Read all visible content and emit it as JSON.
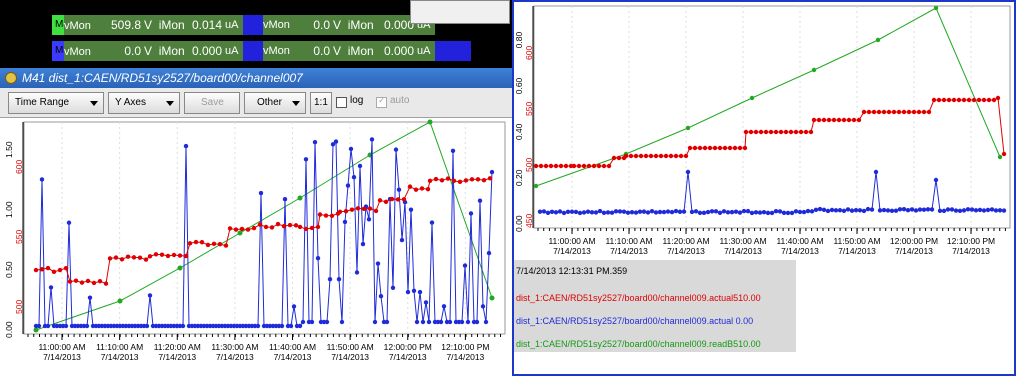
{
  "monitor_rows": [
    {
      "name": "M44",
      "v_label": "vMon",
      "v_value": "509.8",
      "v_unit": "V",
      "i_label": "iMon",
      "i_value": "0.014",
      "i_unit": "uA",
      "name_color": "#3fe03f",
      "v2_label": "vMon",
      "v2_value": "0.0",
      "v2_unit": "V",
      "i2_label": "iMon",
      "i2_value": "0.000",
      "i2_unit": "uA"
    },
    {
      "name": "M45",
      "v_label": "vMon",
      "v_value": "0.0",
      "v_unit": "V",
      "i_label": "iMon",
      "i_value": "0.000",
      "i_unit": "uA",
      "name_color": "#3b3bff",
      "v2_label": "vMon",
      "v2_value": "0.0",
      "v2_unit": "V",
      "i2_label": "iMon",
      "i2_value": "0.000",
      "i2_unit": "uA"
    }
  ],
  "left_window": {
    "title": "M41 dist_1:CAEN/RD51sy2527/board00/channel007",
    "toolbar": {
      "time_range": "Time Range",
      "y_axes": "Y Axes",
      "save": "Save",
      "other": "Other",
      "one_to_one": "1:1",
      "log_label": "log",
      "auto_label": "auto",
      "log_checked": false,
      "auto_checked": true
    },
    "x_ticks": [
      {
        "time": "11:00:00 AM",
        "date": "7/14/2013"
      },
      {
        "time": "11:10:00 AM",
        "date": "7/14/2013"
      },
      {
        "time": "11:20:00 AM",
        "date": "7/14/2013"
      },
      {
        "time": "11:30:00 AM",
        "date": "7/14/2013"
      },
      {
        "time": "11:40:00 AM",
        "date": "7/14/2013"
      },
      {
        "time": "11:50:00 AM",
        "date": "7/14/2013"
      },
      {
        "time": "12:00:00 PM",
        "date": "7/14/2013"
      },
      {
        "time": "12:10:00 PM",
        "date": "7/14/2013"
      }
    ],
    "y_left_ticks": [
      "0.00",
      "0.50",
      "1.00",
      "1.50"
    ],
    "y_right_ticks": [
      "500",
      "550",
      "600"
    ]
  },
  "right_window": {
    "x_ticks": [
      {
        "time": "11:00:00 AM",
        "date": "7/14/2013"
      },
      {
        "time": "11:10:00 AM",
        "date": "7/14/2013"
      },
      {
        "time": "11:20:00 AM",
        "date": "7/14/2013"
      },
      {
        "time": "11:30:00 AM",
        "date": "7/14/2013"
      },
      {
        "time": "11:40:00 AM",
        "date": "7/14/2013"
      },
      {
        "time": "11:50:00 AM",
        "date": "7/14/2013"
      },
      {
        "time": "12:00:00 PM",
        "date": "7/14/2013"
      },
      {
        "time": "12:10:00 PM",
        "date": "7/14/2013"
      }
    ],
    "y_left_ticks": [
      "0.00",
      "0.20",
      "0.40",
      "0.60",
      "0.80"
    ],
    "y_right_ticks": [
      "450",
      "500",
      "550",
      "600"
    ],
    "legend": {
      "timestamp": "7/14/2013 12:13:31 PM.359",
      "lines": [
        {
          "text": "dist_1:CAEN/RD51sy2527/board00/channel009.actual510.00",
          "color": "#e00000"
        },
        {
          "text": "dist_1:CAEN/RD51sy2527/board00/channel009.actual  0.00",
          "color": "#1f2bd9"
        },
        {
          "text": "dist_1:CAEN/RD51sy2527/board00/channel009.readB510.00",
          "color": "#139b13"
        }
      ]
    }
  },
  "colors": {
    "series_red": "#e00000",
    "series_blue": "#1f2bd9",
    "series_green": "#21a821"
  }
}
